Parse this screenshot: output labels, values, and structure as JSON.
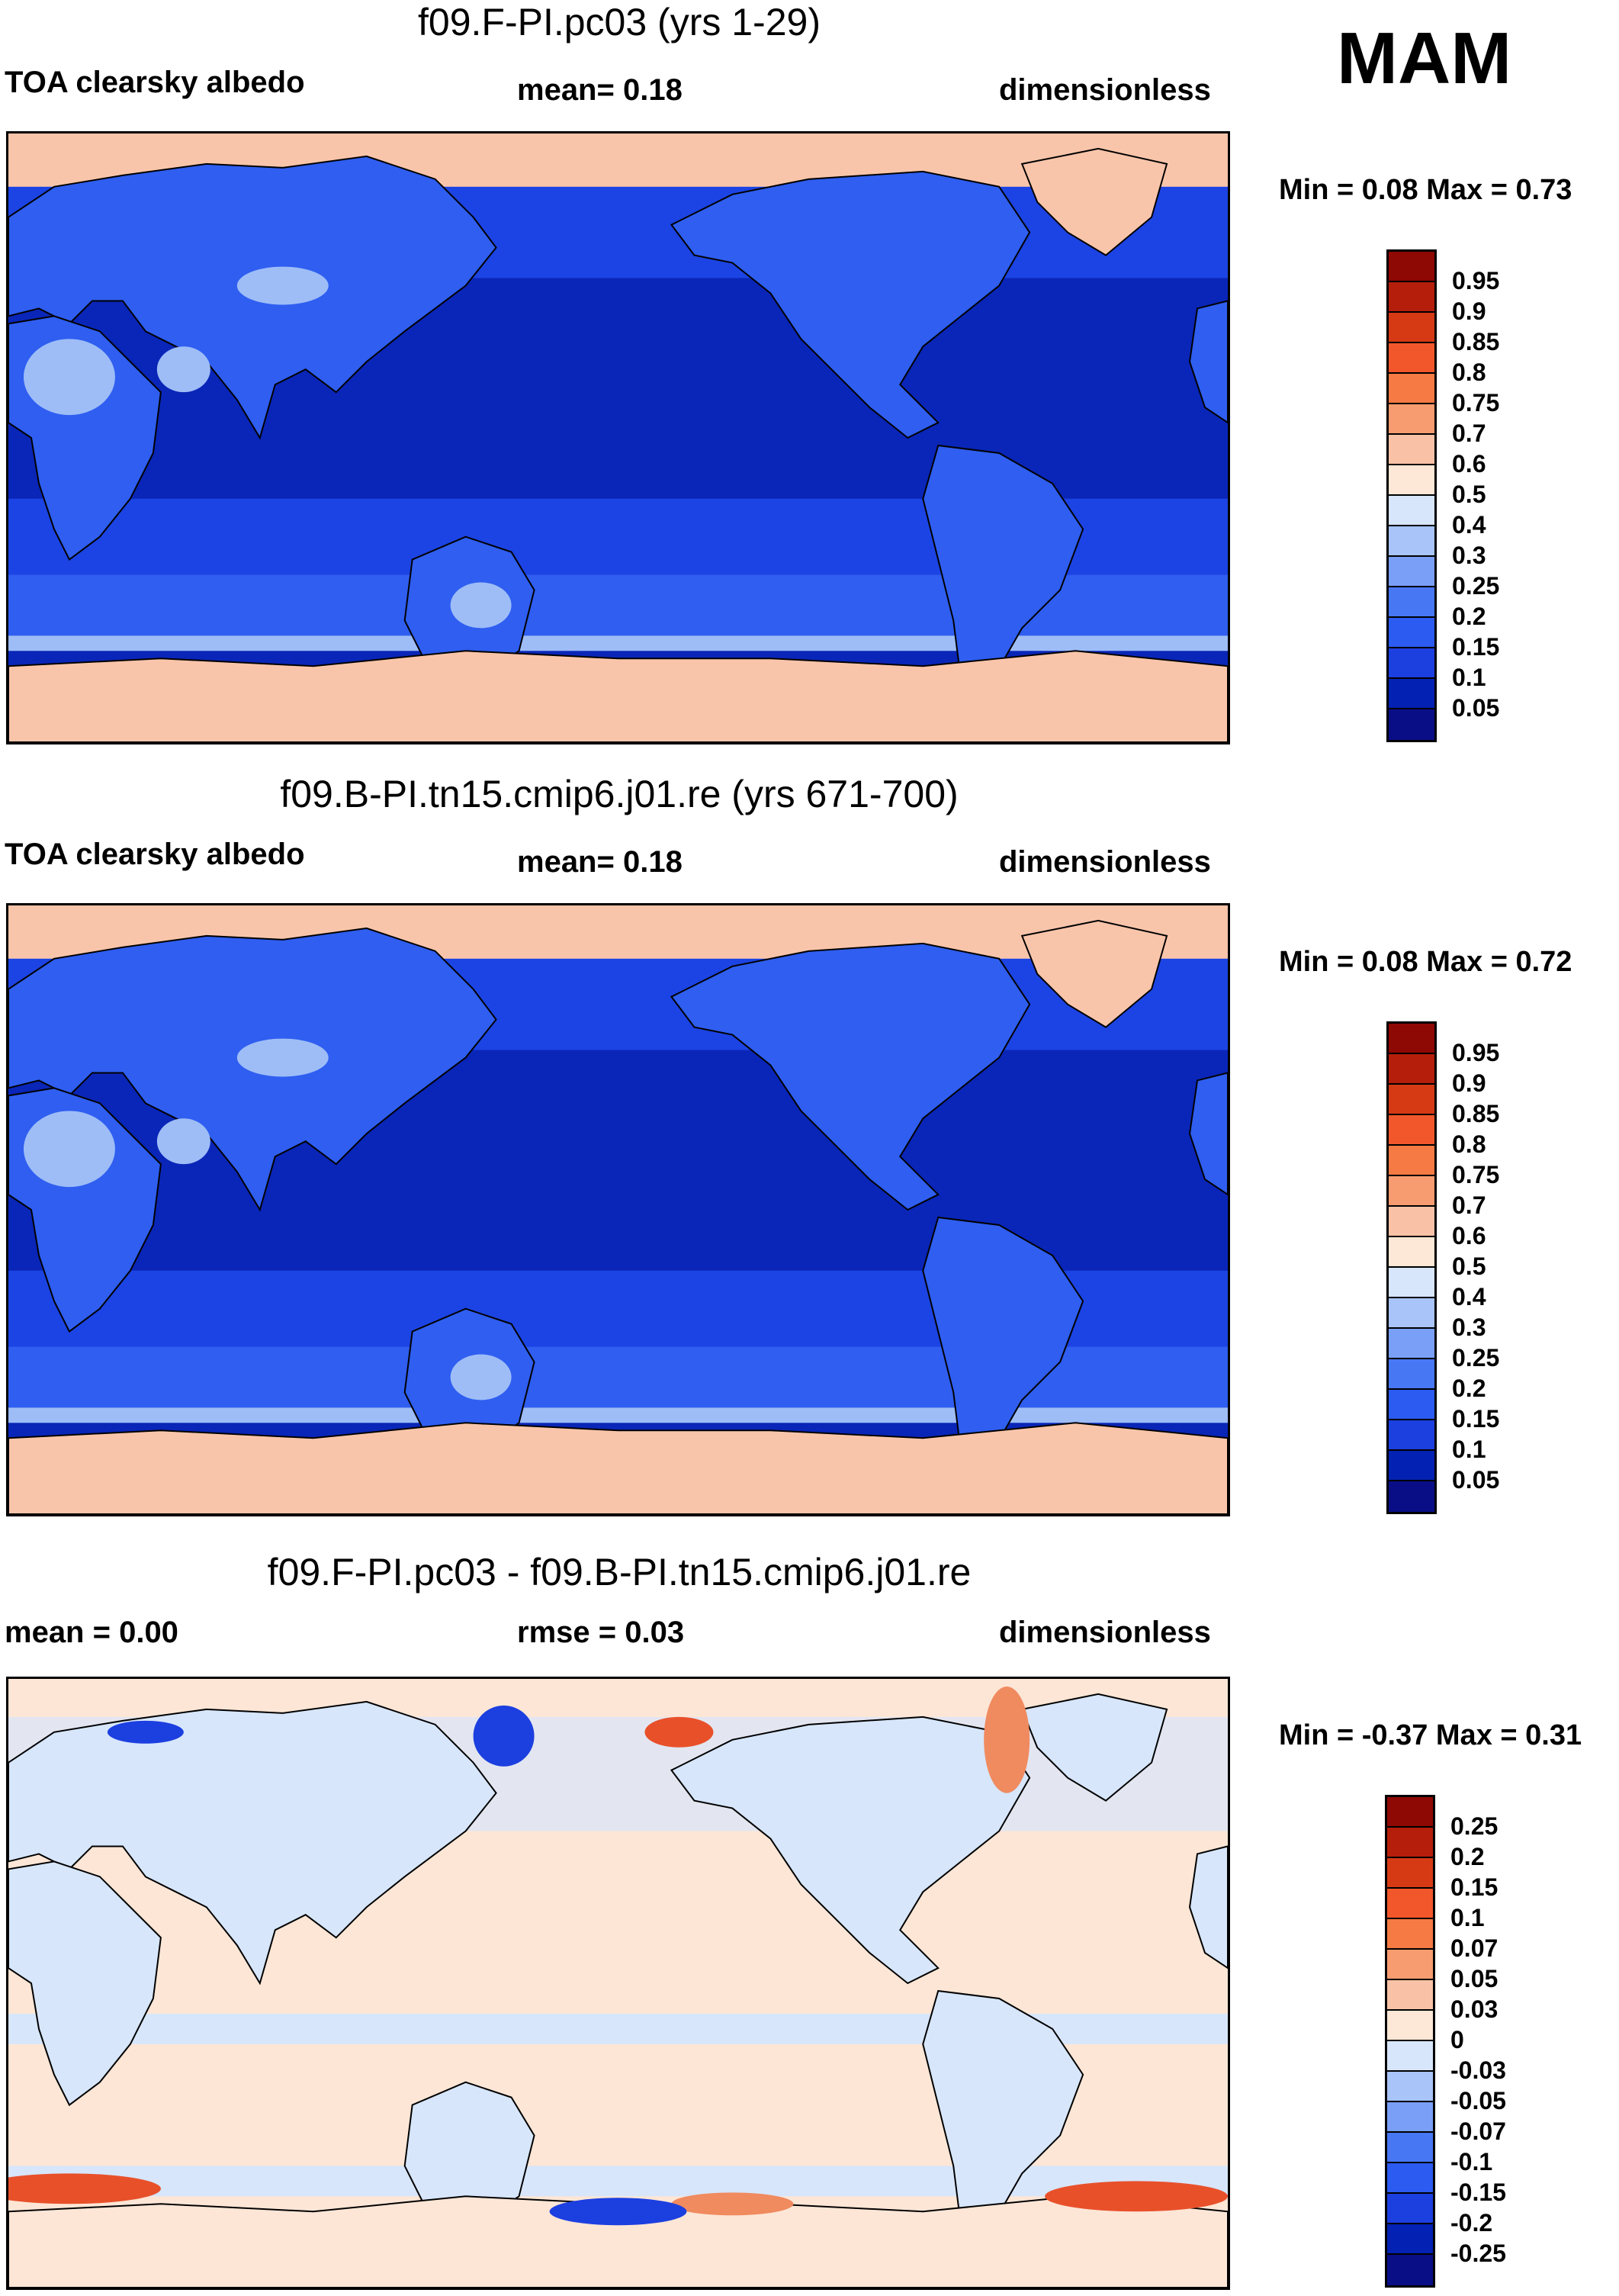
{
  "season": "MAM",
  "panels": [
    {
      "title": "f09.F-PI.pc03 (yrs 1-29)",
      "left_label": "TOA clearsky albedo",
      "center_label": "mean=   0.18",
      "right_label": "dimensionless",
      "minmax": "Min =   0.08 Max =   0.73",
      "colorbar": {
        "colors": [
          "#0a0e86",
          "#0321b2",
          "#1c3fe0",
          "#2c5bf1",
          "#4877f4",
          "#7a9ff7",
          "#a8c4f8",
          "#d7e6fb",
          "#fde7d6",
          "#f9c2a6",
          "#f79c70",
          "#f57a44",
          "#f2572b",
          "#d63a15",
          "#b51e0b",
          "#8e0804"
        ],
        "labels": [
          "0.95",
          "0.9",
          "0.85",
          "0.8",
          "0.75",
          "0.7",
          "0.6",
          "0.5",
          "0.4",
          "0.3",
          "0.25",
          "0.2",
          "0.15",
          "0.1",
          "0.05"
        ]
      }
    },
    {
      "title": "f09.B-PI.tn15.cmip6.j01.re (yrs 671-700)",
      "left_label": "TOA clearsky albedo",
      "center_label": "mean=   0.18",
      "right_label": "dimensionless",
      "minmax": "Min =   0.08 Max =   0.72",
      "colorbar": {
        "colors": [
          "#0a0e86",
          "#0321b2",
          "#1c3fe0",
          "#2c5bf1",
          "#4877f4",
          "#7a9ff7",
          "#a8c4f8",
          "#d7e6fb",
          "#fde7d6",
          "#f9c2a6",
          "#f79c70",
          "#f57a44",
          "#f2572b",
          "#d63a15",
          "#b51e0b",
          "#8e0804"
        ],
        "labels": [
          "0.95",
          "0.9",
          "0.85",
          "0.8",
          "0.75",
          "0.7",
          "0.6",
          "0.5",
          "0.4",
          "0.3",
          "0.25",
          "0.2",
          "0.15",
          "0.1",
          "0.05"
        ]
      }
    },
    {
      "title": "f09.F-PI.pc03 - f09.B-PI.tn15.cmip6.j01.re",
      "left_label": "mean =   0.00",
      "center_label": "rmse =   0.03",
      "right_label": "dimensionless",
      "minmax": "Min =  -0.37 Max =   0.31",
      "colorbar": {
        "colors": [
          "#0a0e86",
          "#0321b2",
          "#1c3fe0",
          "#2c5bf1",
          "#4877f4",
          "#7a9ff7",
          "#a8c4f8",
          "#d7e6fb",
          "#fde7d6",
          "#f9c2a6",
          "#f79c70",
          "#f57a44",
          "#f2572b",
          "#d63a15",
          "#b51e0b",
          "#8e0804"
        ],
        "labels": [
          "0.25",
          "0.2",
          "0.15",
          "0.1",
          "0.07",
          "0.05",
          "0.03",
          "0",
          "-0.03",
          "-0.05",
          "-0.07",
          "-0.1",
          "-0.15",
          "-0.2",
          "-0.25"
        ]
      }
    }
  ],
  "map_palette": {
    "deep": "#0a26b8",
    "mid": "#1c44e4",
    "light": "#2f5ef0",
    "pale": "#9ebdf7",
    "ice": "#f9c5aa",
    "ice_dark": "#f2a383",
    "diff_bg": "#fde6d6",
    "diff_neg": "#d7e6fb",
    "diff_pos": "#f08a5f",
    "diff_strong_pos": "#e8502a",
    "diff_strong_neg": "#1c3fe0",
    "coast": "#000000"
  }
}
